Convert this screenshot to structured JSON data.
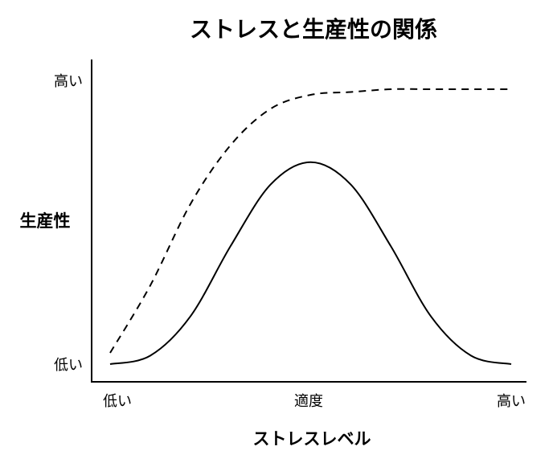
{
  "chart_data": {
    "type": "line",
    "title": "ストレスと生産性の関係",
    "xlabel": "ストレスレベル",
    "ylabel": "生産性",
    "x_ticks": [
      "低い",
      "適度",
      "高い"
    ],
    "y_ticks": [
      "低い",
      "高い"
    ],
    "xlim": [
      0,
      1
    ],
    "ylim": [
      0,
      1
    ],
    "grid": false,
    "legend": "none",
    "series": [
      {
        "style": "solid",
        "x": [
          0.0,
          0.1,
          0.2,
          0.3,
          0.4,
          0.5,
          0.6,
          0.7,
          0.8,
          0.9,
          1.0
        ],
        "y": [
          0.0,
          0.03,
          0.17,
          0.42,
          0.64,
          0.72,
          0.64,
          0.42,
          0.17,
          0.03,
          0.0
        ]
      },
      {
        "style": "dashed",
        "x": [
          0.0,
          0.1,
          0.2,
          0.3,
          0.4,
          0.5,
          0.6,
          0.7,
          0.8,
          0.9,
          1.0
        ],
        "y": [
          0.04,
          0.28,
          0.57,
          0.78,
          0.91,
          0.96,
          0.97,
          0.98,
          0.98,
          0.98,
          0.98
        ]
      }
    ],
    "colors": {
      "line": "#000000",
      "axis": "#000000"
    }
  }
}
